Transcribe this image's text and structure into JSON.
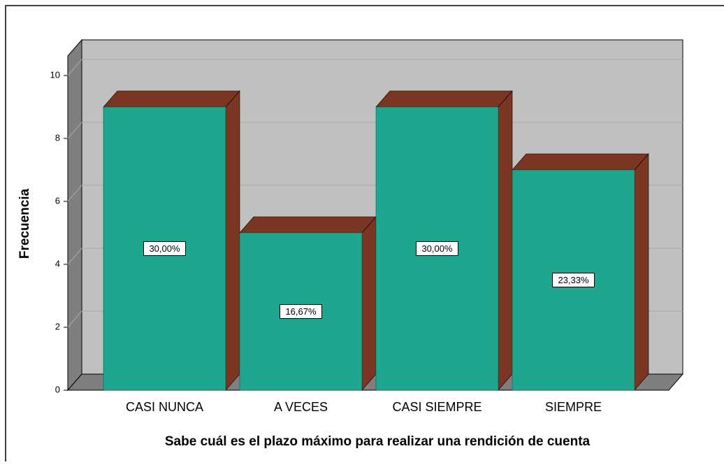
{
  "chart_data": {
    "type": "bar3d",
    "x_label": "Sabe cuál es el plazo máximo para realizar una rendición de cuenta",
    "y_label": "Frecuencia",
    "categories": [
      "CASI NUNCA",
      "A VECES",
      "CASI SIEMPRE",
      "SIEMPRE"
    ],
    "values": [
      9,
      5,
      9,
      7
    ],
    "percentages": [
      30.0,
      16.67,
      30.0,
      23.33
    ],
    "percentage_labels": [
      "30,00%",
      "16,67%",
      "30,00%",
      "23,33%"
    ],
    "color": "#1fa68e",
    "side_color": "#7a3523",
    "ylim": [
      0,
      10
    ],
    "yticks": [
      0,
      2,
      4,
      6,
      8,
      10
    ],
    "grid": true
  }
}
